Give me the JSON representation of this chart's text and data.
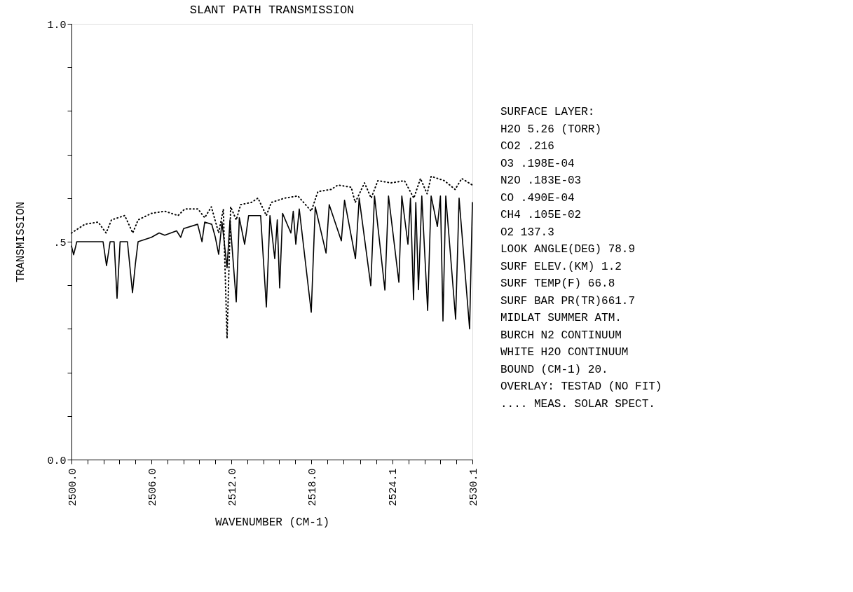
{
  "chart_data": {
    "type": "line",
    "title": "SLANT PATH TRANSMISSION",
    "xlabel": "WAVENUMBER (CM-1)",
    "ylabel": "TRANSMISSION",
    "xlim": [
      2500.0,
      2530.1
    ],
    "ylim": [
      0,
      1
    ],
    "xticks": [
      {
        "value": 2500.0,
        "label": "2500.0"
      },
      {
        "value": 2501.2,
        "label": null
      },
      {
        "value": 2502.4,
        "label": null
      },
      {
        "value": 2503.6,
        "label": null
      },
      {
        "value": 2504.8,
        "label": null
      },
      {
        "value": 2506.0,
        "label": "2506.0"
      },
      {
        "value": 2507.2,
        "label": null
      },
      {
        "value": 2508.4,
        "label": null
      },
      {
        "value": 2509.6,
        "label": null
      },
      {
        "value": 2510.8,
        "label": null
      },
      {
        "value": 2512.0,
        "label": "2512.0"
      },
      {
        "value": 2513.2,
        "label": null
      },
      {
        "value": 2514.4,
        "label": null
      },
      {
        "value": 2515.6,
        "label": null
      },
      {
        "value": 2516.8,
        "label": null
      },
      {
        "value": 2518.0,
        "label": "2518.0"
      },
      {
        "value": 2519.2,
        "label": null
      },
      {
        "value": 2520.4,
        "label": null
      },
      {
        "value": 2521.7,
        "label": null
      },
      {
        "value": 2522.9,
        "label": null
      },
      {
        "value": 2524.1,
        "label": "2524.1"
      },
      {
        "value": 2525.3,
        "label": null
      },
      {
        "value": 2526.5,
        "label": null
      },
      {
        "value": 2527.7,
        "label": null
      },
      {
        "value": 2528.9,
        "label": null
      },
      {
        "value": 2530.1,
        "label": "2530.1"
      }
    ],
    "yticks": [
      {
        "value": 0,
        "label": "0.0"
      },
      {
        "value": 0.1,
        "label": null
      },
      {
        "value": 0.2,
        "label": null
      },
      {
        "value": 0.3,
        "label": null
      },
      {
        "value": 0.4,
        "label": null
      },
      {
        "value": 0.5,
        "label": ".5"
      },
      {
        "value": 0.6,
        "label": null
      },
      {
        "value": 0.7,
        "label": null
      },
      {
        "value": 0.8,
        "label": null
      },
      {
        "value": 0.9,
        "label": null
      },
      {
        "value": 1,
        "label": "1.0"
      }
    ],
    "grid": false,
    "marker": "none",
    "series": [
      {
        "color": "#000000",
        "line_style": "solid",
        "x": [
          2500.0,
          2500.16,
          2500.4,
          2502.37,
          2502.63,
          2502.9,
          2503.2,
          2503.42,
          2503.65,
          2504.2,
          2504.58,
          2504.8,
          2505.0,
          2506.0,
          2506.58,
          2507.0,
          2507.89,
          2508.2,
          2508.42,
          2509.47,
          2509.8,
          2510.0,
          2510.53,
          2510.8,
          2511.05,
          2511.3,
          2511.68,
          2511.9,
          2512.37,
          2512.6,
          2513.0,
          2513.3,
          2514.2,
          2514.63,
          2514.9,
          2515.26,
          2515.45,
          2515.63,
          2515.85,
          2516.47,
          2516.65,
          2516.84,
          2517.1,
          2518.0,
          2518.3,
          2519.11,
          2519.35,
          2520.26,
          2520.5,
          2521.32,
          2521.6,
          2522.47,
          2522.75,
          2523.53,
          2523.8,
          2524.58,
          2524.8,
          2525.26,
          2525.45,
          2525.68,
          2525.85,
          2526.05,
          2526.3,
          2526.74,
          2527.0,
          2527.47,
          2527.7,
          2527.89,
          2528.1,
          2528.84,
          2529.1,
          2529.89,
          2530.1
        ],
        "values": [
          0.49,
          0.47,
          0.5,
          0.5,
          0.445,
          0.5,
          0.5,
          0.37,
          0.5,
          0.5,
          0.383,
          0.45,
          0.5,
          0.51,
          0.52,
          0.515,
          0.525,
          0.51,
          0.53,
          0.54,
          0.5,
          0.545,
          0.54,
          0.51,
          0.471,
          0.545,
          0.44,
          0.55,
          0.362,
          0.555,
          0.494,
          0.56,
          0.56,
          0.35,
          0.56,
          0.461,
          0.55,
          0.394,
          0.565,
          0.52,
          0.57,
          0.494,
          0.575,
          0.338,
          0.58,
          0.474,
          0.585,
          0.502,
          0.595,
          0.461,
          0.6,
          0.399,
          0.605,
          0.389,
          0.605,
          0.407,
          0.605,
          0.494,
          0.6,
          0.367,
          0.59,
          0.39,
          0.605,
          0.342,
          0.605,
          0.535,
          0.605,
          0.318,
          0.605,
          0.322,
          0.6,
          0.3,
          0.59
        ]
      },
      {
        "color": "#000000",
        "line_style": "dotted",
        "x": [
          2500.0,
          2501.0,
          2502.0,
          2502.6,
          2503.0,
          2504.0,
          2504.6,
          2505.0,
          2506.0,
          2507.0,
          2508.0,
          2508.5,
          2509.5,
          2510.0,
          2510.5,
          2511.05,
          2511.4,
          2511.68,
          2511.95,
          2512.37,
          2512.7,
          2513.5,
          2514.0,
          2514.63,
          2515.0,
          2516.0,
          2517.0,
          2518.0,
          2518.5,
          2519.5,
          2520.0,
          2521.0,
          2521.3,
          2522.0,
          2522.5,
          2523.0,
          2524.0,
          2525.0,
          2525.7,
          2526.2,
          2526.7,
          2527.0,
          2528.0,
          2528.8,
          2529.3,
          2530.1
        ],
        "values": [
          0.52,
          0.54,
          0.545,
          0.52,
          0.55,
          0.56,
          0.52,
          0.55,
          0.565,
          0.57,
          0.56,
          0.575,
          0.575,
          0.555,
          0.58,
          0.52,
          0.575,
          0.278,
          0.58,
          0.55,
          0.585,
          0.59,
          0.6,
          0.56,
          0.59,
          0.6,
          0.605,
          0.57,
          0.615,
          0.62,
          0.63,
          0.625,
          0.59,
          0.635,
          0.6,
          0.64,
          0.635,
          0.64,
          0.6,
          0.645,
          0.61,
          0.65,
          0.64,
          0.62,
          0.645,
          0.63
        ]
      }
    ],
    "annotations": [
      "SURFACE LAYER:",
      "H2O   5.26    (TORR)",
      "CO2  .216",
      "O3   .198E-04",
      "N2O  .183E-03",
      "CO   .490E-04",
      "CH4  .105E-02",
      "O2   137.3",
      "LOOK ANGLE(DEG) 78.9",
      "SURF ELEV.(KM)   1.2",
      "SURF TEMP(F) 66.8",
      "SURF BAR PR(TR)661.7",
      "MIDLAT SUMMER ATM.",
      "BURCH N2 CONTINUUM",
      "WHITE H2O CONTINUUM",
      "BOUND (CM-1) 20.",
      "OVERLAY: TESTAD (NO FIT)",
      ".... MEAS. SOLAR SPECT."
    ]
  }
}
